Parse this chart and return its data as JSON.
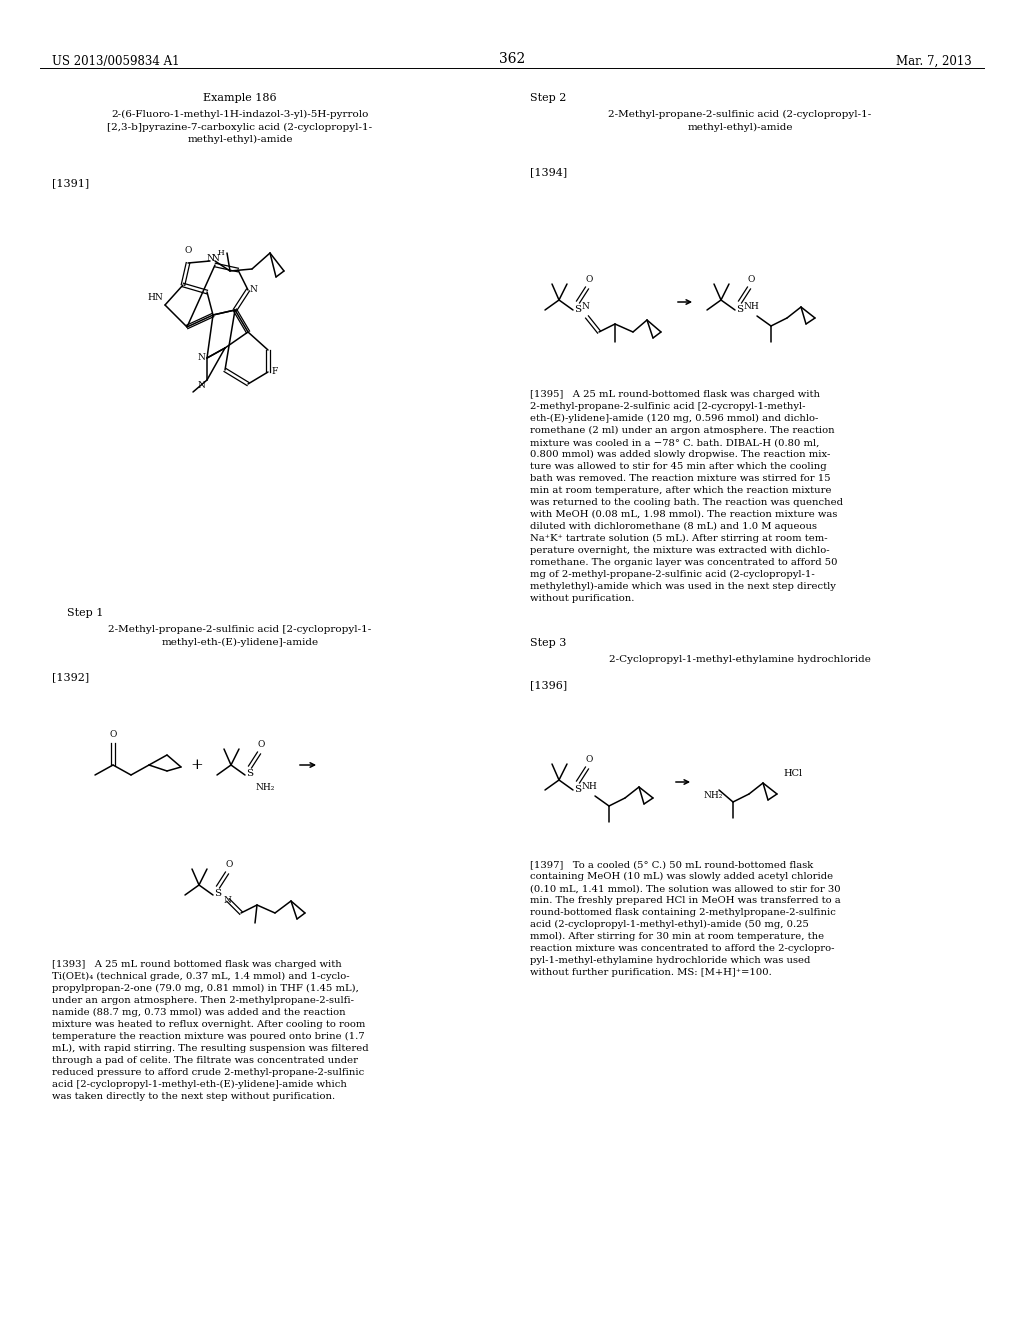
{
  "page_number": "362",
  "patent_number": "US 2013/0059834 A1",
  "patent_date": "Mar. 7, 2013",
  "background_color": "#ffffff",
  "text_color": "#000000",
  "left_col": {
    "example_label": "Example 186",
    "compound_name": "2-(6-Fluoro-1-methyl-1H-indazol-3-yl)-5H-pyrrolo\n[2,3-b]pyrazine-7-carboxylic acid (2-cyclopropyl-1-\nmethyl-ethyl)-amide",
    "ref_num": "[1391]",
    "step1_label": "Step 1",
    "step1_compound": "2-Methyl-propane-2-sulfinic acid [2-cyclopropyl-1-\nmethyl-eth-(E)-ylidene]-amide",
    "ref_num2": "[1392]",
    "body_text": "[1393]   A 25 mL round bottomed flask was charged with\nTi(OEt)₄ (technical grade, 0.37 mL, 1.4 mmol) and 1-cyclo-\npropylpropan-2-one (79.0 mg, 0.81 mmol) in THF (1.45 mL),\nunder an argon atmosphere. Then 2-methylpropane-2-sulfi-\nnamide (88.7 mg, 0.73 mmol) was added and the reaction\nmixture was heated to reflux overnight. After cooling to room\ntemperature the reaction mixture was poured onto brine (1.7\nmL), with rapid stirring. The resulting suspension was filtered\nthrough a pad of celite. The filtrate was concentrated under\nreduced pressure to afford crude 2-methyl-propane-2-sulfinic\nacid [2-cyclopropyl-1-methyl-eth-(E)-ylidene]-amide which\nwas taken directly to the next step without purification."
  },
  "right_col": {
    "step2_label": "Step 2",
    "step2_compound": "2-Methyl-propane-2-sulfinic acid (2-cyclopropyl-1-\nmethyl-ethyl)-amide",
    "ref_num": "[1394]",
    "body_text2": "[1395]   A 25 mL round-bottomed flask was charged with\n2-methyl-propane-2-sulfinic acid [2-cycropyl-1-methyl-\neth-(E)-ylidene]-amide (120 mg, 0.596 mmol) and dichlo-\nromethane (2 ml) under an argon atmosphere. The reaction\nmixture was cooled in a −78° C. bath. DIBAL-H (0.80 ml,\n0.800 mmol) was added slowly dropwise. The reaction mix-\nture was allowed to stir for 45 min after which the cooling\nbath was removed. The reaction mixture was stirred for 15\nmin at room temperature, after which the reaction mixture\nwas returned to the cooling bath. The reaction was quenched\nwith MeOH (0.08 mL, 1.98 mmol). The reaction mixture was\ndiluted with dichloromethane (8 mL) and 1.0 M aqueous\nNa⁺K⁺ tartrate solution (5 mL). After stirring at room tem-\nperature overnight, the mixture was extracted with dichlo-\nromethane. The organic layer was concentrated to afford 50\nmg of 2-methyl-propane-2-sulfinic acid (2-cyclopropyl-1-\nmethylethyl)-amide which was used in the next step directly\nwithout purification.",
    "step3_label": "Step 3",
    "step3_compound": "2-Cyclopropyl-1-methyl-ethylamine hydrochloride",
    "ref_num3": "[1396]",
    "body_text3": "[1397]   To a cooled (5° C.) 50 mL round-bottomed flask\ncontaining MeOH (10 mL) was slowly added acetyl chloride\n(0.10 mL, 1.41 mmol). The solution was allowed to stir for 30\nmin. The freshly prepared HCl in MeOH was transferred to a\nround-bottomed flask containing 2-methylpropane-2-sulfinic\nacid (2-cyclopropyl-1-methyl-ethyl)-amide (50 mg, 0.25\nmmol). After stirring for 30 min at room temperature, the\nreaction mixture was concentrated to afford the 2-cyclopro-\npyl-1-methyl-ethylamine hydrochloride which was used\nwithout further purification. MS: [M+H]⁺=100."
  }
}
